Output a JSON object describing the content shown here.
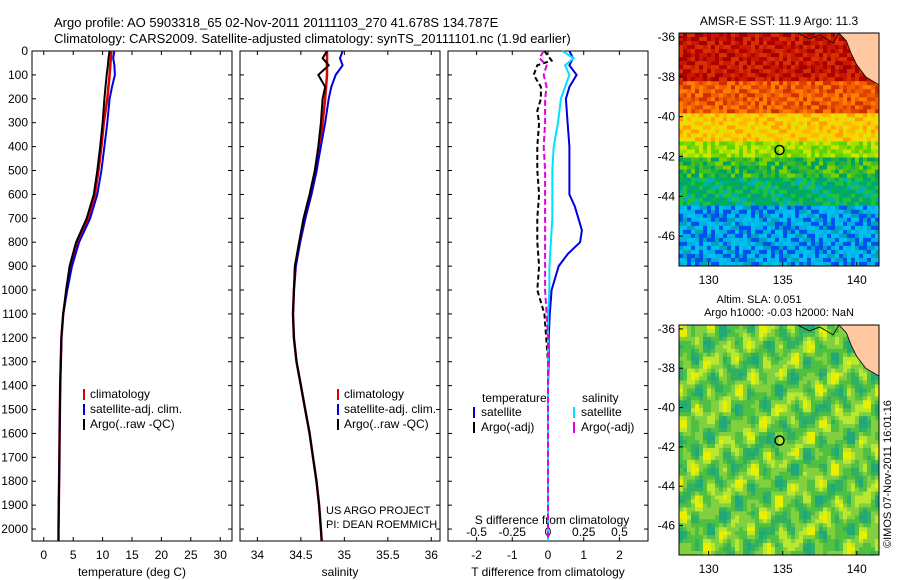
{
  "header": {
    "line1": "Argo profile: AO 5903318_65 02-Nov-2011 20111103_270 41.678S 134.787E",
    "line2": "Climatology: CARS2009. Satellite-adjusted climatology: synTS_20111101.nc (1.9d earlier)"
  },
  "colors": {
    "climatology": "#e00000",
    "satellite": "#0000dd",
    "argo": "#000000",
    "satellite_salinity": "#00e0ff",
    "argo_salinity": "#e000e0",
    "land": "#ffc8a0"
  },
  "chart_data": [
    {
      "type": "line",
      "xlabel": "temperature (deg C)",
      "xlim": [
        -2,
        32
      ],
      "xticks": [
        "0",
        "5",
        "10",
        "15",
        "20",
        "25",
        "30"
      ],
      "ylim": [
        2050,
        0
      ],
      "yticks": [
        "0",
        "100",
        "200",
        "300",
        "400",
        "500",
        "600",
        "700",
        "800",
        "900",
        "1000",
        "1100",
        "1200",
        "1300",
        "1400",
        "1500",
        "1600",
        "1700",
        "1800",
        "1900",
        "2000"
      ],
      "legend": [
        "climatology",
        "satellite-adj. clim.",
        "Argo(..raw -QC)"
      ],
      "series": [
        {
          "name": "climatology",
          "color": "climatology",
          "depth": [
            0,
            100,
            200,
            300,
            400,
            500,
            600,
            700,
            800,
            900,
            1000,
            1100,
            1200,
            1300,
            1400,
            1500,
            1600,
            1700,
            1800,
            1900,
            2000,
            2050
          ],
          "values": [
            11.5,
            11.2,
            10.8,
            10.2,
            9.8,
            9.3,
            8.7,
            7.6,
            5.8,
            4.6,
            3.9,
            3.3,
            3.0,
            2.9,
            2.8,
            2.75,
            2.7,
            2.65,
            2.6,
            2.55,
            2.5,
            2.5
          ]
        },
        {
          "name": "satellite-adj. clim.",
          "color": "satellite",
          "depth": [
            0,
            30,
            60,
            100,
            150,
            200,
            300,
            400,
            500,
            600,
            700,
            800,
            900,
            1000,
            1100,
            1200,
            1300,
            1400,
            1500,
            1600,
            1700,
            1800,
            1900,
            2000,
            2050
          ],
          "values": [
            12.0,
            11.8,
            12.0,
            12.1,
            11.6,
            11.2,
            10.8,
            10.3,
            9.8,
            9.1,
            7.9,
            6.0,
            4.8,
            4.0,
            3.3,
            3.0,
            2.9,
            2.8,
            2.75,
            2.7,
            2.65,
            2.6,
            2.55,
            2.5,
            2.5
          ]
        },
        {
          "name": "Argo(..raw -QC)",
          "color": "argo",
          "depth": [
            0,
            30,
            60,
            100,
            150,
            200,
            300,
            400,
            500,
            600,
            700,
            800,
            900,
            1000,
            1100,
            1200,
            1300,
            1400,
            1500,
            1600,
            1700,
            1800,
            1900,
            2000,
            2050
          ],
          "values": [
            11.2,
            11.0,
            10.9,
            10.7,
            10.5,
            10.3,
            10.0,
            9.6,
            9.1,
            8.5,
            7.3,
            5.5,
            4.4,
            3.8,
            3.3,
            3.0,
            2.9,
            2.8,
            2.75,
            2.7,
            2.65,
            2.6,
            2.55,
            2.5,
            2.5
          ]
        }
      ]
    },
    {
      "type": "line",
      "xlabel": "salinity",
      "xlim": [
        33.8,
        36.1
      ],
      "xticks": [
        "34",
        "34.5",
        "35",
        "35.5",
        "36"
      ],
      "ylim": [
        2050,
        0
      ],
      "legend": [
        "climatology",
        "satellite-adj. clim.",
        "Argo(..raw -QC)"
      ],
      "annotation": [
        "US ARGO PROJECT",
        "PI: DEAN ROEMMICH"
      ],
      "series": [
        {
          "name": "climatology",
          "color": "climatology",
          "depth": [
            0,
            100,
            200,
            300,
            400,
            500,
            600,
            700,
            800,
            900,
            1000,
            1100,
            1200,
            1300,
            1400,
            1500,
            1600,
            1700,
            1800,
            1900,
            2000,
            2050
          ],
          "values": [
            34.8,
            34.8,
            34.78,
            34.75,
            34.72,
            34.68,
            34.62,
            34.55,
            34.49,
            34.44,
            34.42,
            34.41,
            34.42,
            34.45,
            34.5,
            34.55,
            34.6,
            34.64,
            34.68,
            34.71,
            34.73,
            34.74
          ]
        },
        {
          "name": "satellite-adj. clim.",
          "color": "satellite",
          "depth": [
            0,
            30,
            60,
            100,
            150,
            200,
            300,
            400,
            500,
            600,
            700,
            800,
            900,
            1000,
            1100,
            1200,
            1300,
            1400,
            1500,
            1600,
            1700,
            1800,
            1900,
            2000,
            2050
          ],
          "values": [
            34.98,
            34.95,
            34.98,
            34.9,
            34.85,
            34.82,
            34.78,
            34.73,
            34.68,
            34.62,
            34.55,
            34.49,
            34.44,
            34.42,
            34.41,
            34.42,
            34.45,
            34.5,
            34.55,
            34.6,
            34.64,
            34.68,
            34.71,
            34.73,
            34.74
          ]
        },
        {
          "name": "Argo(..raw -QC)",
          "color": "argo",
          "depth": [
            0,
            30,
            60,
            100,
            150,
            200,
            300,
            400,
            500,
            600,
            700,
            800,
            900,
            1000,
            1100,
            1200,
            1300,
            1400,
            1500,
            1600,
            1700,
            1800,
            1900,
            2000,
            2050
          ],
          "values": [
            34.8,
            34.75,
            34.82,
            34.7,
            34.78,
            34.75,
            34.73,
            34.7,
            34.66,
            34.6,
            34.53,
            34.48,
            34.43,
            34.42,
            34.41,
            34.42,
            34.45,
            34.5,
            34.55,
            34.6,
            34.64,
            34.68,
            34.71,
            34.73,
            34.74
          ]
        }
      ]
    },
    {
      "type": "line",
      "xlabel": "T difference from climatology",
      "xlabel_top": "S difference from climatology",
      "xlim": [
        -2.8,
        2.8
      ],
      "xticks": [
        "-2",
        "-1",
        "0",
        "1",
        "2"
      ],
      "xticks_top": [
        "-0.5",
        "-0.25",
        "0",
        "0.25",
        "0.5"
      ],
      "ylim": [
        2050,
        0
      ],
      "legend_titles": [
        "temperature",
        "salinity"
      ],
      "legend": [
        "satellite",
        "Argo(-adj)",
        "satellite",
        "Argo(-adj)"
      ],
      "series": [
        {
          "name": "satellite",
          "color": "satellite",
          "depth": [
            0,
            30,
            60,
            100,
            150,
            200,
            300,
            400,
            500,
            600,
            650,
            700,
            750,
            800,
            850,
            900,
            1000,
            1100,
            1200,
            1300,
            1400,
            1500,
            2000,
            2050
          ],
          "values": [
            0.6,
            0.7,
            0.6,
            0.8,
            0.6,
            0.5,
            0.55,
            0.6,
            0.6,
            0.6,
            0.75,
            0.85,
            0.95,
            0.9,
            0.55,
            0.3,
            0.1,
            0.05,
            0.02,
            0.02,
            0.0,
            0.0,
            0.0,
            0.0
          ]
        },
        {
          "name": "Argo(-adj)",
          "color": "argo",
          "depth": [
            0,
            40,
            60,
            100,
            150,
            200,
            250,
            300,
            400,
            500,
            600,
            700,
            800,
            900,
            1000,
            1100,
            1200,
            1300,
            1400,
            1500,
            2000,
            2050
          ],
          "values": [
            -0.1,
            0.1,
            -0.3,
            -0.4,
            -0.2,
            -0.2,
            -0.3,
            -0.25,
            -0.3,
            -0.3,
            -0.25,
            -0.3,
            -0.3,
            -0.25,
            -0.3,
            -0.1,
            -0.05,
            0.0,
            0.0,
            0.0,
            0.0,
            0.0
          ]
        },
        {
          "name": "satellite",
          "color": "satellite_salinity",
          "depth": [
            0,
            30,
            60,
            100,
            150,
            200,
            300,
            400,
            500,
            600,
            700,
            800,
            900,
            1000,
            1100,
            1200,
            1300,
            1400,
            1500,
            2000,
            2050
          ],
          "values": [
            0.1,
            0.18,
            0.12,
            0.15,
            0.12,
            0.09,
            0.07,
            0.04,
            0.03,
            0.03,
            0.03,
            0.02,
            0.01,
            0.01,
            0.0,
            0.0,
            0.0,
            0.0,
            0.0,
            0.0,
            0.0
          ]
        },
        {
          "name": "Argo(-adj)",
          "color": "argo_salinity",
          "depth": [
            0,
            30,
            60,
            100,
            150,
            200,
            300,
            400,
            500,
            600,
            700,
            800,
            900,
            1000,
            1100,
            1200,
            1300,
            1400,
            1500,
            2000,
            2050
          ],
          "values": [
            -0.03,
            -0.06,
            -0.01,
            -0.03,
            -0.01,
            -0.02,
            -0.02,
            -0.03,
            -0.02,
            -0.02,
            -0.02,
            -0.02,
            -0.02,
            -0.02,
            -0.01,
            0.0,
            0.0,
            0.0,
            0.0,
            0.0,
            0.0
          ]
        }
      ]
    },
    {
      "type": "heatmap",
      "title": "AMSR-E SST: 11.9 Argo: 11.3",
      "xlim": [
        128,
        141.5
      ],
      "ylim": [
        -47.5,
        -35.8
      ],
      "xticks": [
        "130",
        "135",
        "140"
      ],
      "yticks": [
        "-36",
        "-38",
        "-40",
        "-42",
        "-44",
        "-46"
      ],
      "marker": {
        "lon": 134.787,
        "lat": -41.678
      }
    },
    {
      "type": "heatmap",
      "title": "Altim. SLA: 0.051",
      "subtitle": "Argo h1000: -0.03 h2000: NaN",
      "xlim": [
        128,
        141.5
      ],
      "ylim": [
        -47.5,
        -35.8
      ],
      "xticks": [
        "130",
        "135",
        "140"
      ],
      "yticks": [
        "-36",
        "-38",
        "-40",
        "-42",
        "-44",
        "-46"
      ],
      "marker": {
        "lon": 134.787,
        "lat": -41.678
      }
    }
  ],
  "side_label": "©IMOS 07-Nov-2011 16:01:16"
}
